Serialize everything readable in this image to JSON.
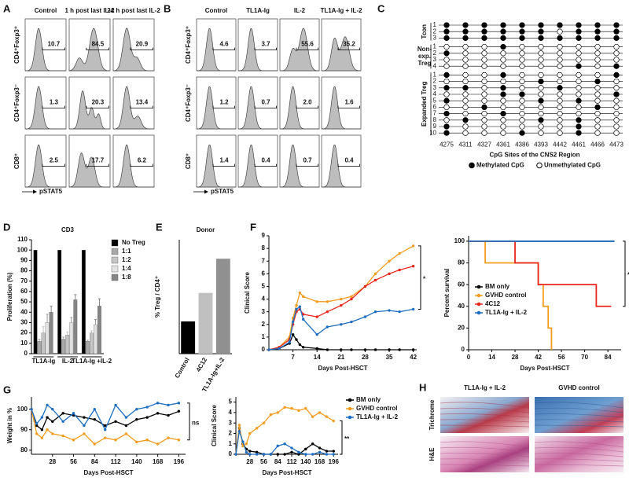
{
  "panels": {
    "A": {
      "letter": "A",
      "columns": [
        "Control",
        "1 h post last IL-2",
        "24 h post last IL-2"
      ],
      "rows": [
        "CD4⁺Foxp3⁺",
        "CD4⁺Foxp3⁻",
        "CD8⁺"
      ],
      "values": [
        [
          "10.7",
          "84.5",
          "20.9"
        ],
        [
          "1.3",
          "20.3",
          "13.4"
        ],
        [
          "2.5",
          "17.7",
          "6.2"
        ]
      ],
      "axis_label": "pSTAT5"
    },
    "B": {
      "letter": "B",
      "columns": [
        "Control",
        "TL1A-Ig",
        "IL-2",
        "TL1A-Ig + IL-2"
      ],
      "rows": [
        "CD4⁺Foxp3⁺",
        "CD4⁺Foxp3⁻",
        "CD8⁺"
      ],
      "values": [
        [
          "4.6",
          "3.7",
          "55.6",
          "35.2"
        ],
        [
          "1.2",
          "0.7",
          "2.0",
          "1.6"
        ],
        [
          "1.4",
          "0.4",
          "0.7",
          "0.4"
        ]
      ],
      "axis_label": "pSTAT5"
    },
    "C": {
      "letter": "C",
      "groups": [
        {
          "name": [
            "Tcon"
          ],
          "row_labels": [
            "1",
            "2",
            "3"
          ],
          "rows": [
            [
              1,
              1,
              1,
              1,
              1,
              1,
              1,
              1,
              1,
              1
            ],
            [
              1,
              1,
              1,
              1,
              1,
              1,
              0,
              1,
              1,
              1
            ],
            [
              1,
              1,
              1,
              1,
              1,
              1,
              1,
              1,
              1,
              1
            ]
          ]
        },
        {
          "name": [
            "Non-",
            "exp.",
            "Treg"
          ],
          "row_labels": [
            "1",
            "2",
            "3",
            "4"
          ],
          "rows": [
            [
              0,
              0,
              0,
              1,
              0,
              0,
              0,
              0,
              0,
              0
            ],
            [
              1,
              0,
              0,
              0,
              0,
              0,
              0,
              0,
              0,
              0
            ],
            [
              0,
              0,
              0,
              0,
              0,
              0,
              0,
              0,
              0,
              0
            ],
            [
              0,
              0,
              0,
              0,
              0,
              0,
              0,
              1,
              0,
              1
            ]
          ]
        },
        {
          "name": [
            "Expanded Treg"
          ],
          "row_labels": [
            "1",
            "2",
            "3",
            "4",
            "5",
            "6",
            "7",
            "8",
            "9",
            "10"
          ],
          "rows": [
            [
              1,
              0,
              0,
              1,
              0,
              0,
              0,
              0,
              0,
              1
            ],
            [
              0,
              0,
              0,
              0,
              0,
              1,
              0,
              0,
              1,
              0
            ],
            [
              1,
              1,
              0,
              1,
              0,
              0,
              1,
              0,
              0,
              0
            ],
            [
              0,
              0,
              0,
              1,
              1,
              0,
              0,
              0,
              0,
              1
            ],
            [
              1,
              0,
              0,
              0,
              0,
              1,
              0,
              1,
              0,
              0
            ],
            [
              0,
              0,
              1,
              0,
              0,
              0,
              0,
              0,
              1,
              0
            ],
            [
              1,
              0,
              0,
              1,
              0,
              0,
              0,
              0,
              0,
              0
            ],
            [
              0,
              1,
              0,
              0,
              0,
              1,
              0,
              1,
              0,
              0
            ],
            [
              1,
              0,
              0,
              0,
              0,
              0,
              0,
              1,
              0,
              0
            ],
            [
              1,
              0,
              0,
              0,
              1,
              0,
              0,
              1,
              0,
              0
            ]
          ]
        }
      ],
      "sites": [
        4275,
        4311,
        4327,
        4361,
        4386,
        4393,
        4442,
        4461,
        4466,
        4473
      ],
      "xlabel": "CpG Sites of the CNS2 Region",
      "legend": [
        "Methylated CpG",
        "Unmethylated CpG"
      ]
    },
    "H": {
      "letter": "H",
      "columns": [
        "TL1A-Ig + IL-2",
        "GVHD control"
      ],
      "rows": [
        "Trichrome",
        "H&E"
      ]
    }
  },
  "chart_data": [
    {
      "type": "bar",
      "letter": "D",
      "title": "CD3",
      "ylabel": "Proliferation (%)",
      "categories": [
        "TL1A-Ig",
        "IL-2",
        "TL1A-Ig +IL-2"
      ],
      "ylim": [
        0,
        110
      ],
      "yticks": [
        0,
        10,
        20,
        30,
        40,
        50,
        60,
        70,
        80,
        90,
        100,
        110
      ],
      "legend": "right",
      "series": [
        {
          "name": "No Treg",
          "color": "#000000",
          "values": [
            100,
            100,
            100
          ]
        },
        {
          "name": "1:1",
          "color": "#a8a8a8",
          "values": [
            12,
            14,
            12
          ],
          "errors": [
            2,
            2,
            1
          ]
        },
        {
          "name": "1:2",
          "color": "#c4c4c4",
          "values": [
            20,
            18,
            20
          ],
          "errors": [
            6,
            3,
            2
          ]
        },
        {
          "name": "1:4",
          "color": "#e2e2e2",
          "values": [
            30,
            30,
            28
          ],
          "errors": [
            8,
            5,
            5
          ]
        },
        {
          "name": "1:8",
          "color": "#858585",
          "values": [
            40,
            52,
            46
          ],
          "errors": [
            6,
            5,
            7
          ]
        }
      ]
    },
    {
      "type": "bar",
      "letter": "E",
      "title": "Donor",
      "ylabel": "% Treg / CD4⁺",
      "categories": [
        "Control",
        "4C12",
        "TL1A-Ig+IL-2"
      ],
      "values": [
        17,
        32,
        50
      ],
      "colors": [
        "#000000",
        "#c0c0c0",
        "#909090"
      ],
      "ylim": [
        0,
        60
      ]
    },
    {
      "type": "line",
      "letter": "F",
      "xlabel": "Days Post-HSCT",
      "ylabel": "Clinical Score",
      "annotation": "*",
      "x": [
        0,
        3,
        6,
        7,
        8,
        9,
        10,
        14,
        17,
        21,
        24,
        28,
        31,
        35,
        38,
        42
      ],
      "xlim": [
        0,
        43
      ],
      "xticks": [
        7,
        14,
        21,
        28,
        35,
        42
      ],
      "ylim": [
        0,
        9
      ],
      "yticks": [
        0,
        1,
        2,
        3,
        4,
        5,
        6,
        7,
        8,
        9
      ],
      "series": [
        {
          "name": "BM only",
          "color": "#000000",
          "values": [
            0,
            0.1,
            0.5,
            1.2,
            0.8,
            0.4,
            0.2,
            0.1,
            0,
            0,
            0,
            0,
            0,
            0,
            0,
            0
          ]
        },
        {
          "name": "GVHD control",
          "color": "#f39c1f",
          "values": [
            0,
            0.2,
            1,
            2.5,
            3.5,
            4.5,
            4.2,
            3.8,
            3.8,
            4,
            4.2,
            5,
            6,
            7,
            7.6,
            8.2
          ]
        },
        {
          "name": "4C12",
          "color": "#e8261c",
          "values": [
            0,
            0.2,
            0.8,
            2,
            3,
            3.2,
            2.8,
            2.6,
            3,
            3.5,
            4,
            5,
            5.5,
            6,
            6.3,
            6.6
          ]
        },
        {
          "name": "TL1A-Ig + IL-2",
          "color": "#1f6fc1",
          "values": [
            0,
            0.1,
            0.6,
            2.2,
            3.2,
            3.4,
            2.4,
            1.2,
            1.8,
            2,
            2.2,
            2.6,
            3,
            3.1,
            3,
            3.2
          ]
        }
      ]
    },
    {
      "type": "step",
      "xlabel": "Days Post-HSCT",
      "ylabel": "Percent survival",
      "annotation": "*",
      "legend": "lower left",
      "xlim": [
        0,
        92
      ],
      "xticks": [
        0,
        14,
        28,
        42,
        56,
        70,
        84
      ],
      "ylim": [
        0,
        105
      ],
      "yticks": [
        0,
        20,
        40,
        60,
        80,
        100
      ],
      "series": [
        {
          "name": "BM only",
          "color": "#000000",
          "x": [
            0,
            88
          ],
          "values": [
            100,
            100
          ]
        },
        {
          "name": "GVHD control",
          "color": "#f39c1f",
          "x": [
            0,
            10,
            42,
            45,
            48,
            50
          ],
          "values": [
            100,
            80,
            60,
            40,
            20,
            0
          ]
        },
        {
          "name": "4C12",
          "color": "#e8261c",
          "x": [
            0,
            28,
            42,
            77,
            86
          ],
          "values": [
            100,
            80,
            60,
            40,
            40
          ]
        },
        {
          "name": "TL1A-Ig + IL-2",
          "color": "#1f6fc1",
          "x": [
            0,
            88
          ],
          "values": [
            100,
            100
          ]
        }
      ]
    },
    {
      "type": "line",
      "letter": "G",
      "xlabel": "Days Post-HSCT",
      "ylabel": "Weight in %",
      "annotation": "ns",
      "x": [
        0,
        7,
        14,
        21,
        28,
        42,
        56,
        70,
        84,
        98,
        112,
        126,
        140,
        154,
        168,
        182,
        196
      ],
      "xlim": [
        0,
        205
      ],
      "xticks": [
        28,
        56,
        84,
        112,
        140,
        168,
        196
      ],
      "ylim": [
        78,
        106
      ],
      "yticks": [
        80,
        90,
        100
      ],
      "series": [
        {
          "name": "BM only",
          "color": "#000000",
          "values": [
            100,
            92,
            90,
            96,
            94,
            98,
            97,
            96,
            95,
            92,
            94,
            92,
            95,
            96,
            98,
            97,
            99
          ]
        },
        {
          "name": "GVHD control",
          "color": "#f39c1f",
          "values": [
            100,
            88,
            86,
            90,
            88,
            87,
            85,
            88,
            83,
            86,
            85,
            88,
            84,
            85,
            83,
            86,
            85
          ]
        },
        {
          "name": "TL1A-Ig + IL-2",
          "color": "#1f6fc1",
          "values": [
            100,
            93,
            96,
            102,
            100,
            94,
            98,
            92,
            100,
            90,
            102,
            96,
            100,
            101,
            103,
            102,
            103
          ]
        }
      ]
    },
    {
      "type": "line",
      "xlabel": "Days Post-HSCT",
      "ylabel": "Clinical Score",
      "annotation": "**",
      "legend": "right",
      "x": [
        0,
        7,
        14,
        21,
        28,
        42,
        56,
        70,
        84,
        98,
        112,
        126,
        140,
        154,
        168,
        182,
        196
      ],
      "xlim": [
        0,
        205
      ],
      "xticks": [
        28,
        56,
        84,
        112,
        140,
        168,
        196
      ],
      "ylim": [
        0,
        5.5
      ],
      "yticks": [
        0,
        1,
        2,
        3,
        4,
        5
      ],
      "series": [
        {
          "name": "BM only",
          "color": "#000000",
          "values": [
            0,
            2.5,
            1,
            0.5,
            0.3,
            0.2,
            0,
            0,
            0,
            0,
            0.2,
            0,
            0.5,
            1,
            0.6,
            0.3,
            0.3
          ]
        },
        {
          "name": "GVHD control",
          "color": "#f39c1f",
          "values": [
            0,
            2.8,
            0.8,
            1,
            2,
            2.5,
            3,
            3.8,
            4,
            4.5,
            4.4,
            4.2,
            4.4,
            3.6,
            4,
            3.6,
            3.2
          ]
        },
        {
          "name": "TL1A-Ig + IL-2",
          "color": "#1f6fc1",
          "values": [
            0,
            2.2,
            1.2,
            0.2,
            0,
            0,
            0,
            0,
            0.8,
            1,
            0.6,
            0.2,
            0,
            0,
            0.2,
            0,
            0
          ]
        }
      ]
    }
  ]
}
